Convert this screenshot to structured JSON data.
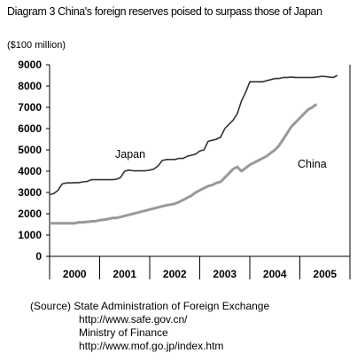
{
  "title": "Diagram 3  China's foreign reserves poised to surpass those of Japan",
  "unit_label": "($100 million)",
  "chart_data": {
    "type": "line",
    "ylim": [
      0,
      9000
    ],
    "yticks": [
      0,
      1000,
      2000,
      3000,
      4000,
      5000,
      6000,
      7000,
      8000,
      9000
    ],
    "ytick_labels": [
      "0",
      "1000",
      "2000",
      "3000",
      "4000",
      "5000",
      "6000",
      "7000",
      "8000",
      "9000"
    ],
    "xlim": [
      0,
      72
    ],
    "year_labels": [
      "2000",
      "2001",
      "2002",
      "2003",
      "2004",
      "2005"
    ],
    "grid": false,
    "series": [
      {
        "name": "Japan",
        "color": "#333333",
        "values": [
          2900,
          2950,
          3100,
          3400,
          3450,
          3450,
          3460,
          3460,
          3500,
          3520,
          3600,
          3600,
          3600,
          3600,
          3600,
          3600,
          3620,
          3700,
          4000,
          4050,
          4020,
          4020,
          4020,
          4020,
          4050,
          4100,
          4250,
          4500,
          4550,
          4550,
          4550,
          4600,
          4600,
          4700,
          4750,
          4800,
          4950,
          5000,
          5400,
          5450,
          5500,
          5600,
          6000,
          6200,
          6400,
          6700,
          7300,
          7700,
          8200,
          8200,
          8200,
          8200,
          8250,
          8300,
          8350,
          8350,
          8400,
          8400,
          8420,
          8400,
          8400,
          8400,
          8400,
          8400,
          8420,
          8450,
          8450,
          8420,
          8400,
          8500
        ]
      },
      {
        "name": "China",
        "color": "#999999",
        "values": [
          1550,
          1550,
          1550,
          1550,
          1550,
          1550,
          1550,
          1600,
          1600,
          1620,
          1640,
          1650,
          1700,
          1720,
          1750,
          1800,
          1800,
          1850,
          1900,
          1950,
          2000,
          2050,
          2100,
          2150,
          2200,
          2250,
          2300,
          2350,
          2400,
          2430,
          2470,
          2550,
          2650,
          2750,
          2850,
          3000,
          3100,
          3200,
          3300,
          3350,
          3450,
          3500,
          3700,
          3900,
          4100,
          4200,
          4000,
          4150,
          4300,
          4400,
          4500,
          4600,
          4700,
          4850,
          5000,
          5200,
          5500,
          5800,
          6100,
          6300,
          6500,
          6700,
          6900,
          7000,
          7150
        ]
      }
    ]
  },
  "series_labels": {
    "japan": "Japan",
    "china": "China"
  },
  "source": {
    "label": "(Source)",
    "line1": "State Administration of Foreign Exchange",
    "line2": "http://www.safe.gov.cn/",
    "line3": "Ministry of Finance",
    "line4": "http://www.mof.go.jp/index.htm"
  }
}
